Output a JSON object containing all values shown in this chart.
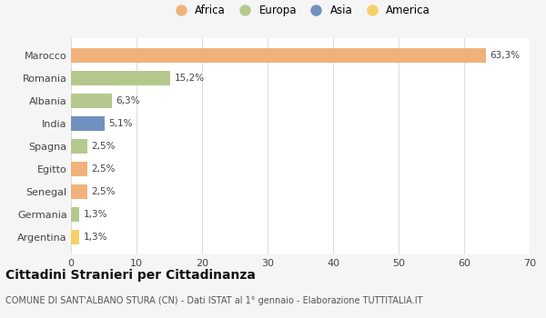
{
  "categories": [
    "Marocco",
    "Romania",
    "Albania",
    "India",
    "Spagna",
    "Egitto",
    "Senegal",
    "Germania",
    "Argentina"
  ],
  "values": [
    63.3,
    15.2,
    6.3,
    5.1,
    2.5,
    2.5,
    2.5,
    1.3,
    1.3
  ],
  "labels": [
    "63,3%",
    "15,2%",
    "6,3%",
    "5,1%",
    "2,5%",
    "2,5%",
    "2,5%",
    "1,3%",
    "1,3%"
  ],
  "colors": [
    "#f0b27a",
    "#b5c98e",
    "#b5c98e",
    "#7090bf",
    "#b5c98e",
    "#f0b27a",
    "#f0b27a",
    "#b5c98e",
    "#f5d06a"
  ],
  "legend_labels": [
    "Africa",
    "Europa",
    "Asia",
    "America"
  ],
  "legend_colors": [
    "#f0b27a",
    "#b5c98e",
    "#7090bf",
    "#f5d06a"
  ],
  "xlim": [
    0,
    70
  ],
  "xticks": [
    0,
    10,
    20,
    30,
    40,
    50,
    60,
    70
  ],
  "title": "Cittadini Stranieri per Cittadinanza",
  "subtitle": "COMUNE DI SANT'ALBANO STURA (CN) - Dati ISTAT al 1° gennaio - Elaborazione TUTTITALIA.IT",
  "bg_color": "#f5f5f5",
  "plot_bg_color": "#ffffff",
  "grid_color": "#dddddd"
}
